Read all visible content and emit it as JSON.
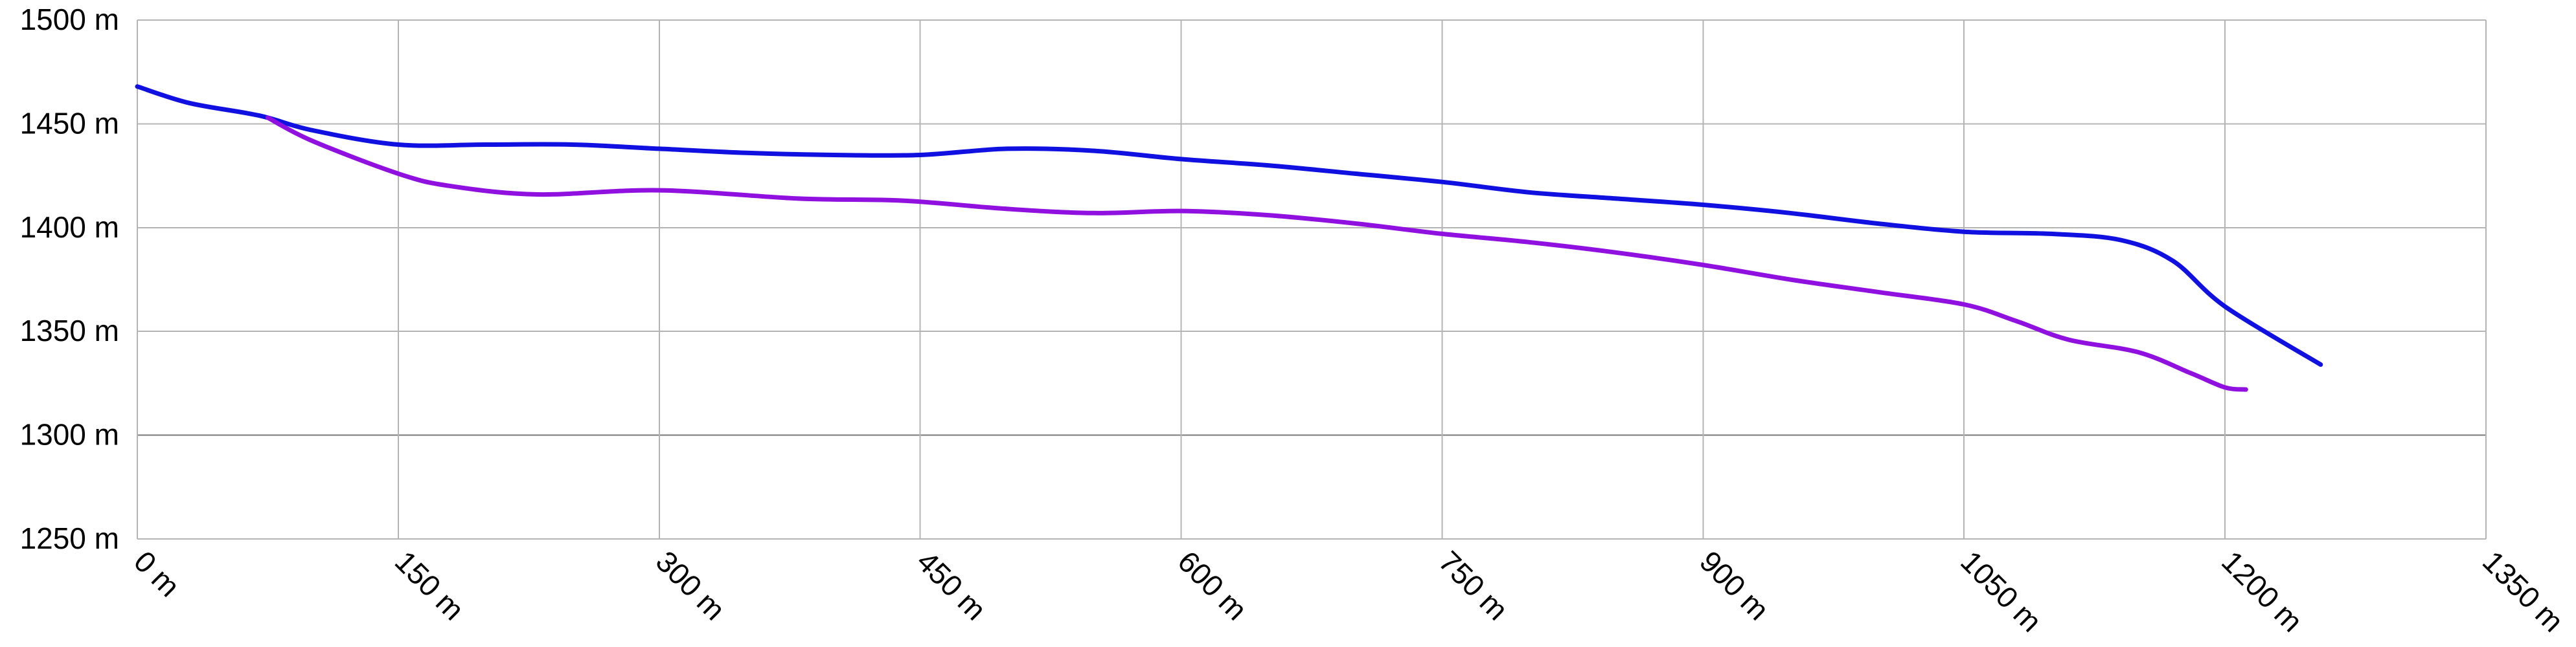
{
  "chart_data": {
    "type": "line",
    "title": "",
    "xlabel": "",
    "ylabel": "",
    "x_unit": " m",
    "y_unit": " m",
    "xlim": [
      0,
      1350
    ],
    "ylim": [
      1250,
      1500
    ],
    "x_ticks": [
      0,
      150,
      300,
      450,
      600,
      750,
      900,
      1050,
      1200,
      1350
    ],
    "y_ticks": [
      1250,
      1300,
      1350,
      1400,
      1450,
      1500
    ],
    "x_tick_labels": [
      "0 m",
      "150 m",
      "300 m",
      "450 m",
      "600 m",
      "750 m",
      "900 m",
      "1050 m",
      "1200 m",
      "1350 m"
    ],
    "y_tick_labels": [
      "1250 m",
      "1300 m",
      "1350 m",
      "1400 m",
      "1450 m",
      "1500 m"
    ],
    "grid": true,
    "legend": "none",
    "series": [
      {
        "color": "#1010e0",
        "points": [
          [
            0,
            1468
          ],
          [
            30,
            1460
          ],
          [
            70,
            1454
          ],
          [
            100,
            1447
          ],
          [
            150,
            1440
          ],
          [
            200,
            1440
          ],
          [
            250,
            1440
          ],
          [
            300,
            1438
          ],
          [
            350,
            1436
          ],
          [
            400,
            1435
          ],
          [
            450,
            1435
          ],
          [
            500,
            1438
          ],
          [
            550,
            1437
          ],
          [
            600,
            1433
          ],
          [
            650,
            1430
          ],
          [
            700,
            1426
          ],
          [
            750,
            1422
          ],
          [
            800,
            1417
          ],
          [
            850,
            1414
          ],
          [
            900,
            1411
          ],
          [
            950,
            1407
          ],
          [
            1000,
            1402
          ],
          [
            1050,
            1398
          ],
          [
            1100,
            1397
          ],
          [
            1140,
            1394
          ],
          [
            1170,
            1384
          ],
          [
            1200,
            1362
          ],
          [
            1255,
            1334
          ]
        ]
      },
      {
        "color": "#9010e0",
        "points": [
          [
            75,
            1453
          ],
          [
            100,
            1442
          ],
          [
            150,
            1426
          ],
          [
            180,
            1420
          ],
          [
            230,
            1416
          ],
          [
            300,
            1418
          ],
          [
            380,
            1414
          ],
          [
            440,
            1413
          ],
          [
            500,
            1409
          ],
          [
            550,
            1407
          ],
          [
            600,
            1408
          ],
          [
            650,
            1406
          ],
          [
            700,
            1402
          ],
          [
            750,
            1397
          ],
          [
            800,
            1393
          ],
          [
            850,
            1388
          ],
          [
            900,
            1382
          ],
          [
            950,
            1375
          ],
          [
            1000,
            1369
          ],
          [
            1050,
            1363
          ],
          [
            1080,
            1355
          ],
          [
            1110,
            1346
          ],
          [
            1150,
            1340
          ],
          [
            1180,
            1330
          ],
          [
            1200,
            1323
          ],
          [
            1212,
            1322
          ]
        ]
      }
    ]
  }
}
